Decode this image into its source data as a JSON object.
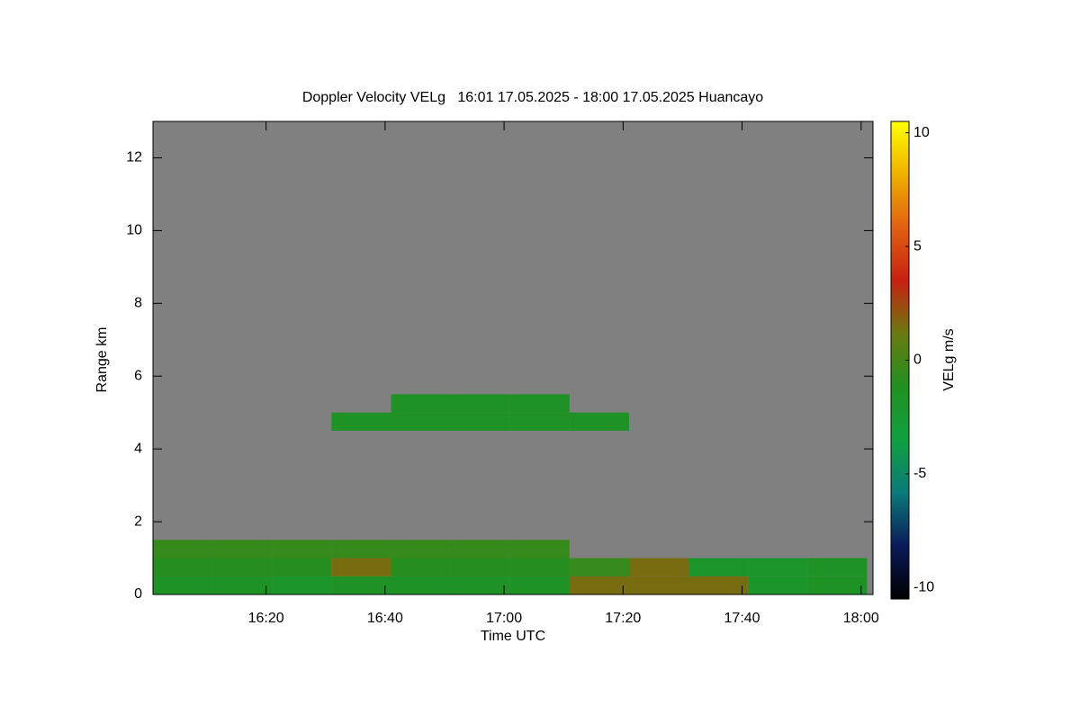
{
  "chart_data": {
    "type": "heatmap",
    "title": "Doppler Velocity VELg   16:01 17.05.2025 - 18:00 17.05.2025 Huancayo",
    "xlabel": "Time UTC",
    "ylabel": "Range km",
    "colorbar_label": "VELg m/s",
    "xlim": [
      961,
      1082
    ],
    "xticks": [
      {
        "value": 980,
        "label": "16:20"
      },
      {
        "value": 1000,
        "label": "16:40"
      },
      {
        "value": 1020,
        "label": "17:00"
      },
      {
        "value": 1040,
        "label": "17:20"
      },
      {
        "value": 1060,
        "label": "17:40"
      },
      {
        "value": 1080,
        "label": "18:00"
      }
    ],
    "ylim": [
      0,
      13
    ],
    "yticks": [
      0,
      2,
      4,
      6,
      8,
      10,
      12
    ],
    "zlim": [
      -10.5,
      10.5
    ],
    "zticks": [
      -10,
      -5,
      0,
      5,
      10
    ],
    "colorscale": [
      "#000000",
      "#0a1a5a",
      "#0a7a7a",
      "#10a040",
      "#209020",
      "#6a7a10",
      "#c82010",
      "#e06010",
      "#f0b000",
      "#ffff00"
    ],
    "background": "#808080",
    "x_bins": [
      961,
      971,
      981,
      991,
      1001,
      1011,
      1021,
      1031,
      1041,
      1051,
      1061,
      1071,
      1081
    ],
    "y_bins": [
      0,
      0.5,
      1,
      1.5,
      4.5,
      5,
      5.5
    ],
    "z": [
      [
        -1.5,
        -1.5,
        -2,
        -1.5,
        -1.5,
        -1.5,
        -1.5,
        1.5,
        1.5,
        1.5,
        -2,
        -1.5
      ],
      [
        -1,
        -1,
        -1,
        1.5,
        -1,
        -1,
        -1,
        -0.5,
        1.5,
        -2,
        -2,
        -1.5
      ],
      [
        -0.5,
        -0.5,
        -0.5,
        -0.5,
        -0.5,
        -0.5,
        -0.5,
        null,
        null,
        null,
        null,
        null
      ],
      [
        null,
        null,
        null,
        null,
        null,
        null,
        null,
        null,
        null,
        null,
        null,
        null
      ],
      [
        null,
        null,
        null,
        -1.5,
        -1.5,
        -1.5,
        -1.5,
        -1.5,
        null,
        null,
        null,
        null
      ],
      [
        null,
        null,
        null,
        null,
        -1.5,
        -1.5,
        -1.5,
        null,
        null,
        null,
        null,
        null
      ]
    ]
  }
}
